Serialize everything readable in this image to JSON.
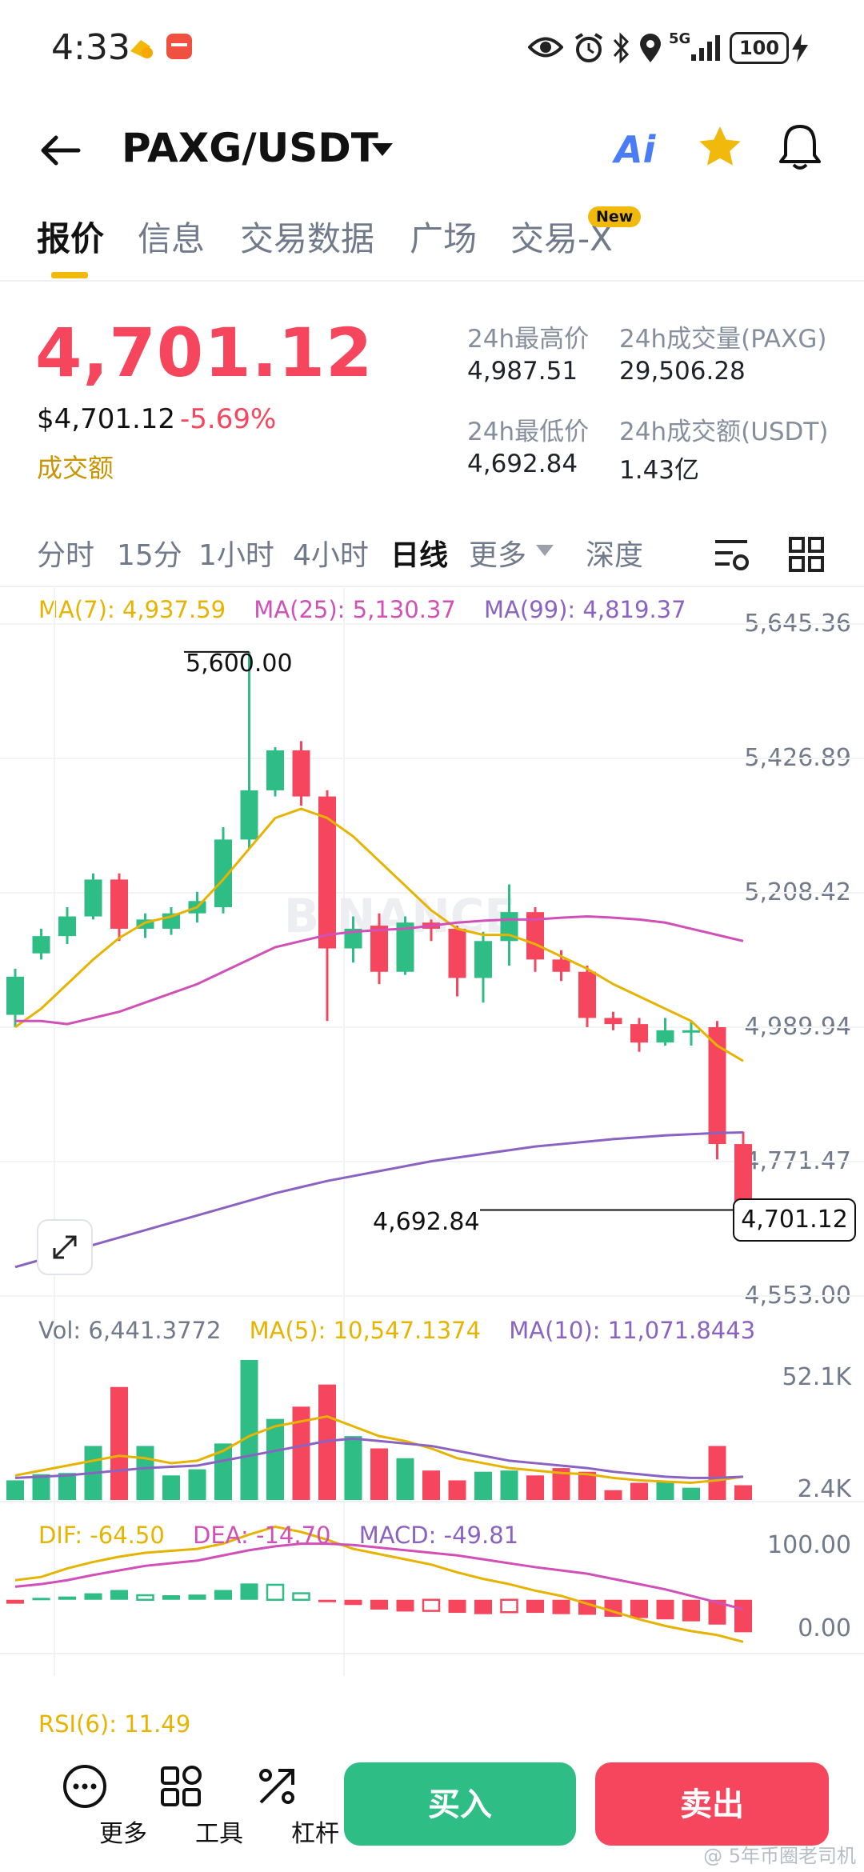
{
  "status_bar": {
    "time": "4:33",
    "network": "5G",
    "battery": "100"
  },
  "header": {
    "pair": "PAXG/USDT",
    "ai_label": "Ai"
  },
  "tabs": [
    {
      "label": "报价",
      "active": true
    },
    {
      "label": "信息"
    },
    {
      "label": "交易数据"
    },
    {
      "label": "广场"
    },
    {
      "label": "交易-X",
      "badge": "New"
    }
  ],
  "price": {
    "last": "4,701.12",
    "usd": "$4,701.12",
    "change": "-5.69%",
    "turnover_label": "成交额"
  },
  "stats": {
    "high_label": "24h最高价",
    "high": "4,987.51",
    "vol_label": "24h成交量(PAXG)",
    "vol": "29,506.28",
    "low_label": "24h最低价",
    "low": "4,692.84",
    "amount_label": "24h成交额(USDT)",
    "amount": "1.43亿"
  },
  "intervals": [
    "分时",
    "15分",
    "1小时",
    "4小时",
    "日线",
    "更多",
    "深度"
  ],
  "active_interval": "日线",
  "chart_legends": {
    "ma7": "MA(7): 4,937.59",
    "ma25": "MA(25): 5,130.37",
    "ma99": "MA(99): 4,819.37",
    "vol": "Vol: 6,441.3772",
    "vol_ma5": "MA(5): 10,547.1374",
    "vol_ma10": "MA(10): 11,071.8443",
    "dif": "DIF: -64.50",
    "dea": "DEA: -14.70",
    "macd": "MACD: -49.81",
    "rsi": "RSI(6): 11.49"
  },
  "watermark": "BINANCE",
  "chart_data": {
    "type": "candlestick",
    "y_axis_labels": [
      "5,645.36",
      "5,426.89",
      "5,208.42",
      "4,989.94",
      "4,771.47",
      "4,553.00"
    ],
    "ylim": [
      4553.0,
      5645.36
    ],
    "annotations": {
      "high": "5,600.00",
      "low": "4,692.84",
      "last": "4,701.12"
    },
    "candles": [
      {
        "o": 5010,
        "c": 5072,
        "h": 5085,
        "l": 4990
      },
      {
        "o": 5110,
        "c": 5138,
        "h": 5150,
        "l": 5100
      },
      {
        "o": 5138,
        "c": 5170,
        "h": 5185,
        "l": 5125
      },
      {
        "o": 5170,
        "c": 5230,
        "h": 5240,
        "l": 5165
      },
      {
        "o": 5230,
        "c": 5150,
        "h": 5240,
        "l": 5130
      },
      {
        "o": 5150,
        "c": 5165,
        "h": 5175,
        "l": 5135
      },
      {
        "o": 5150,
        "c": 5175,
        "h": 5185,
        "l": 5140
      },
      {
        "o": 5175,
        "c": 5195,
        "h": 5210,
        "l": 5160
      },
      {
        "o": 5185,
        "c": 5295,
        "h": 5315,
        "l": 5175
      },
      {
        "o": 5295,
        "c": 5375,
        "h": 5600,
        "l": 5280
      },
      {
        "o": 5375,
        "c": 5440,
        "h": 5445,
        "l": 5365
      },
      {
        "o": 5440,
        "c": 5365,
        "h": 5455,
        "l": 5350
      },
      {
        "o": 5365,
        "c": 5118,
        "h": 5375,
        "l": 5000
      },
      {
        "o": 5118,
        "c": 5150,
        "h": 5170,
        "l": 5095
      },
      {
        "o": 5155,
        "c": 5080,
        "h": 5175,
        "l": 5060
      },
      {
        "o": 5080,
        "c": 5160,
        "h": 5170,
        "l": 5075
      },
      {
        "o": 5160,
        "c": 5150,
        "h": 5165,
        "l": 5130
      },
      {
        "o": 5150,
        "c": 5070,
        "h": 5155,
        "l": 5040
      },
      {
        "o": 5070,
        "c": 5130,
        "h": 5145,
        "l": 5030
      },
      {
        "o": 5130,
        "c": 5177,
        "h": 5222,
        "l": 5090
      },
      {
        "o": 5177,
        "c": 5100,
        "h": 5185,
        "l": 5080
      },
      {
        "o": 5100,
        "c": 5080,
        "h": 5115,
        "l": 5065
      },
      {
        "o": 5080,
        "c": 5005,
        "h": 5090,
        "l": 4990
      },
      {
        "o": 5005,
        "c": 4995,
        "h": 5015,
        "l": 4985
      },
      {
        "o": 4995,
        "c": 4965,
        "h": 5005,
        "l": 4950
      },
      {
        "o": 4965,
        "c": 4985,
        "h": 5005,
        "l": 4960
      },
      {
        "o": 4985,
        "c": 4985,
        "h": 5000,
        "l": 4960
      },
      {
        "o": 4990,
        "c": 4800,
        "h": 5000,
        "l": 4775
      },
      {
        "o": 4800,
        "c": 4701,
        "h": 4820,
        "l": 4692.84
      }
    ],
    "ma7": [
      4990,
      5020,
      5060,
      5100,
      5135,
      5160,
      5170,
      5185,
      5230,
      5280,
      5330,
      5345,
      5330,
      5300,
      5260,
      5220,
      5180,
      5150,
      5140,
      5140,
      5125,
      5105,
      5085,
      5060,
      5040,
      5020,
      5000,
      4960,
      4935
    ],
    "ma25": [
      5000,
      5000,
      4995,
      5005,
      5015,
      5030,
      5045,
      5060,
      5080,
      5100,
      5120,
      5130,
      5140,
      5145,
      5148,
      5150,
      5155,
      5160,
      5163,
      5165,
      5165,
      5168,
      5170,
      5168,
      5165,
      5160,
      5150,
      5140,
      5130
    ],
    "ma99": [
      4600,
      4612,
      4624,
      4636,
      4648,
      4660,
      4672,
      4684,
      4696,
      4708,
      4720,
      4730,
      4740,
      4748,
      4756,
      4764,
      4772,
      4778,
      4784,
      4790,
      4796,
      4800,
      4804,
      4808,
      4811,
      4814,
      4816,
      4818,
      4819
    ],
    "volume": {
      "y_axis_labels": [
        "52.1K",
        "2.4K"
      ],
      "ylim": [
        0,
        52100
      ],
      "values": [
        8000,
        10500,
        11000,
        22000,
        46000,
        22000,
        10000,
        12500,
        23000,
        57000,
        33000,
        38000,
        47000,
        26000,
        21000,
        17000,
        12000,
        8000,
        11500,
        12000,
        10000,
        13000,
        11500,
        4000,
        7000,
        7500,
        5000,
        22000,
        6000
      ],
      "ma5": [
        10000,
        12000,
        14000,
        16000,
        18000,
        17000,
        15000,
        16000,
        20000,
        26000,
        30000,
        32000,
        34000,
        30000,
        26000,
        24000,
        21000,
        17000,
        15000,
        13000,
        12000,
        11000,
        10500,
        9000,
        8000,
        7500,
        7000,
        8000,
        9500
      ],
      "ma10": [
        9000,
        9500,
        10000,
        11000,
        12000,
        13000,
        13500,
        14000,
        16000,
        18000,
        20000,
        22000,
        24000,
        25000,
        24000,
        23000,
        22000,
        20000,
        18000,
        16000,
        15000,
        14000,
        13000,
        11500,
        10500,
        9500,
        9000,
        9000,
        9500
      ]
    },
    "macd": {
      "y_axis_labels": [
        "100.00",
        "0.00"
      ],
      "ylim": [
        -80,
        110
      ],
      "hist": [
        -6,
        3,
        5,
        10,
        15,
        7,
        7,
        8,
        15,
        25,
        23,
        10,
        -2,
        -8,
        -15,
        -18,
        -17,
        -20,
        -22,
        -19,
        -20,
        -22,
        -23,
        -26,
        -28,
        -30,
        -33,
        -38,
        -49.81
      ],
      "dif": [
        30,
        35,
        48,
        58,
        66,
        72,
        75,
        78,
        86,
        100,
        112,
        104,
        92,
        78,
        70,
        62,
        54,
        42,
        32,
        24,
        14,
        6,
        -6,
        -18,
        -30,
        -40,
        -48,
        -54,
        -64.5
      ],
      "dea": [
        20,
        24,
        30,
        38,
        45,
        52,
        56,
        60,
        68,
        76,
        82,
        86,
        86,
        84,
        80,
        76,
        72,
        68,
        62,
        56,
        50,
        45,
        40,
        32,
        24,
        16,
        6,
        -4,
        -14.7
      ]
    }
  },
  "bottom_bar": {
    "more_label": "更多",
    "tools_label": "工具",
    "leverage_label": "杠杆",
    "buy_label": "买入",
    "sell_label": "卖出"
  },
  "footer_watermark": "@ 5年币圈老司机",
  "colors": {
    "up": "#2ebd85",
    "down": "#f6465d",
    "ma7": "#e6b400",
    "ma25": "#d050b8",
    "ma99": "#8a63c2",
    "accent": "#f0b90b"
  }
}
